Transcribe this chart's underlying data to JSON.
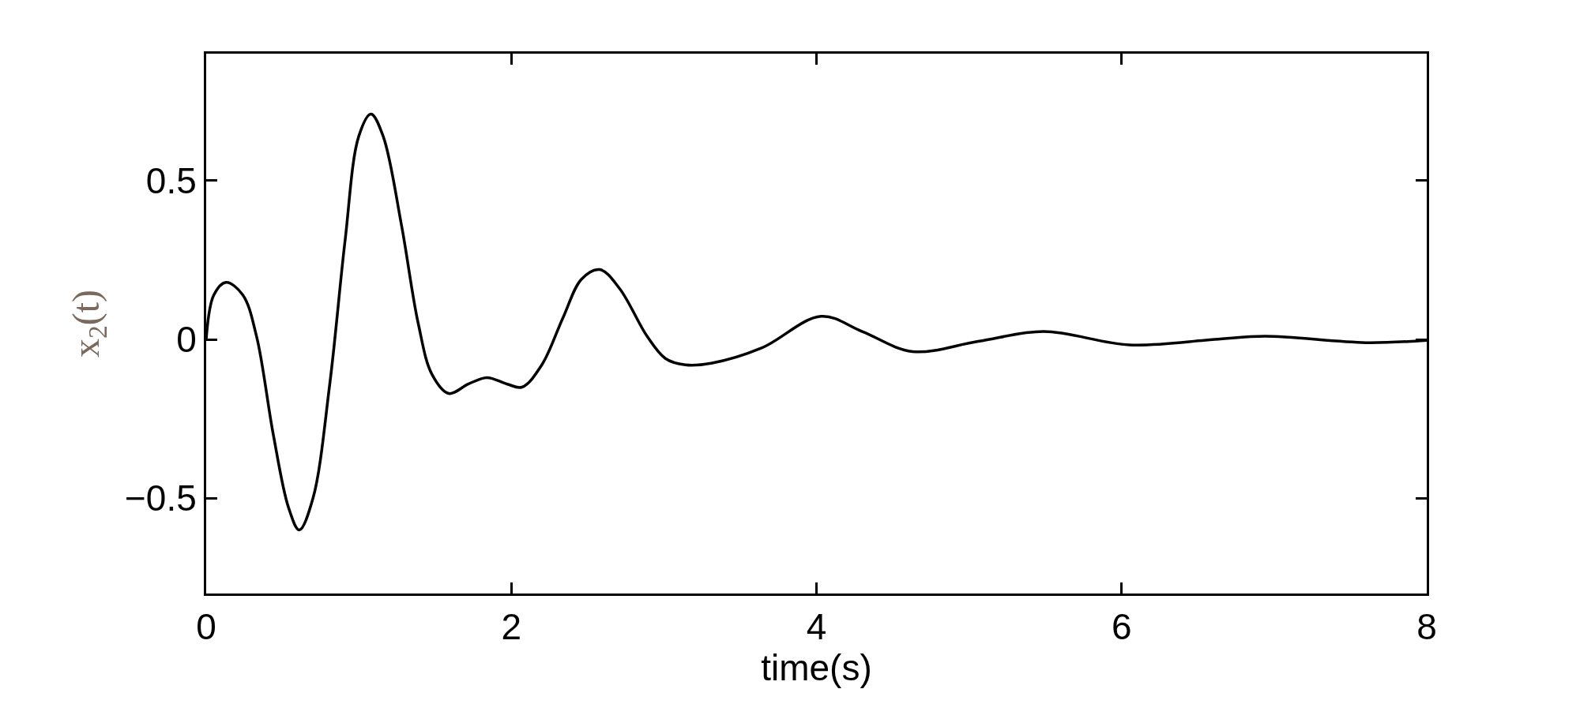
{
  "chart_data": {
    "type": "line",
    "xlabel": "time(s)",
    "ylabel": "x$_{2}$(t)",
    "xlim": [
      0,
      8
    ],
    "xticks": [
      0,
      2,
      4,
      6,
      8
    ],
    "ylim": [
      -0.8,
      0.9
    ],
    "yticks": [
      {
        "value": -0.5,
        "label": "−0.5"
      },
      0,
      0.5
    ],
    "grid": false,
    "marker": "none",
    "line_style": "solid",
    "series": [
      {
        "color": "#000000",
        "x": [
          0,
          0.05,
          0.13,
          0.24,
          0.33,
          0.44,
          0.54,
          0.61,
          0.7,
          0.81,
          0.91,
          1.0,
          1.08,
          1.16,
          1.28,
          1.39,
          1.48,
          1.59,
          1.72,
          1.84,
          1.97,
          2.07,
          2.2,
          2.34,
          2.46,
          2.58,
          2.71,
          2.89,
          3.01,
          3.14,
          3.31,
          3.64,
          4.03,
          4.3,
          4.63,
          5.06,
          5.49,
          6.05,
          6.61,
          6.94,
          7.6,
          8.0
        ],
        "values": [
          0.0,
          0.14,
          0.18,
          0.14,
          0.01,
          -0.3,
          -0.53,
          -0.6,
          -0.5,
          -0.14,
          0.31,
          0.64,
          0.71,
          0.64,
          0.36,
          0.05,
          -0.11,
          -0.17,
          -0.14,
          -0.12,
          -0.14,
          -0.15,
          -0.08,
          0.07,
          0.19,
          0.22,
          0.16,
          0.01,
          -0.06,
          -0.08,
          -0.075,
          -0.027,
          0.073,
          0.025,
          -0.038,
          -0.006,
          0.025,
          -0.017,
          0.0,
          0.01,
          -0.01,
          -0.003
        ]
      }
    ]
  }
}
